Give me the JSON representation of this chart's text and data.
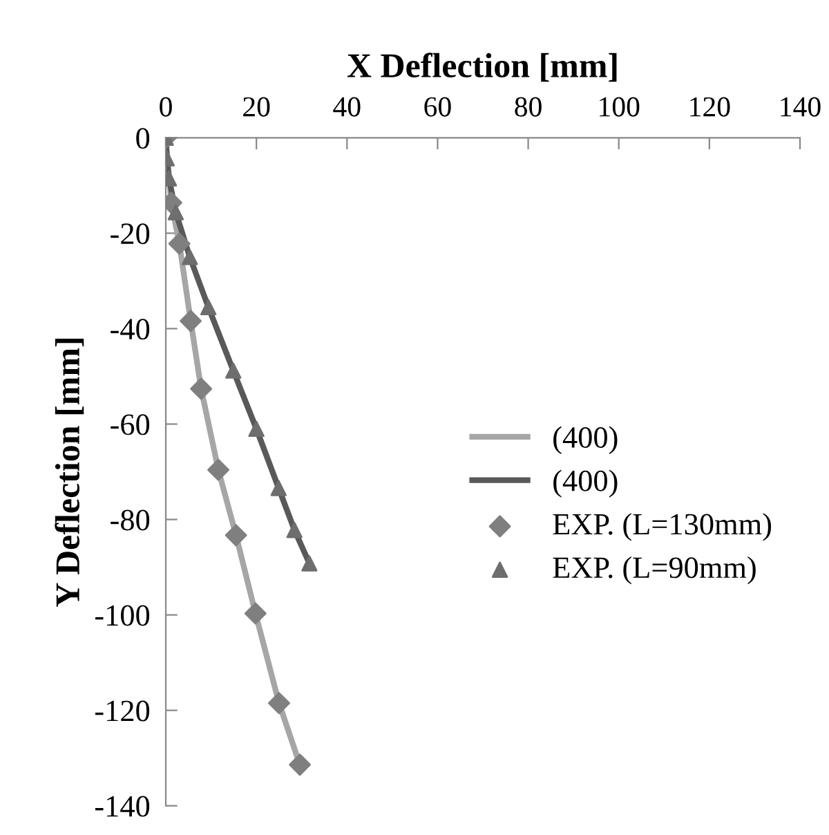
{
  "chart_data": {
    "type": "line",
    "xlabel": "X Deflection [mm]",
    "ylabel": "Y Deflection [mm]",
    "xlim": [
      0,
      140
    ],
    "xticks": [
      0,
      20,
      40,
      60,
      80,
      100,
      120,
      140
    ],
    "ylim": [
      -140,
      0
    ],
    "yticks": [
      -140,
      -120,
      -100,
      -80,
      -60,
      -40,
      -20,
      0
    ],
    "grid": false,
    "legend": "right",
    "series": [
      {
        "name": "(400)",
        "color": "#a6a6a6",
        "marker": "none",
        "x": [
          0,
          1.2,
          3,
          5.5,
          7.8,
          11.6,
          15.5,
          19.8,
          25,
          29.6
        ],
        "values": [
          0,
          -13.6,
          -22.2,
          -38.4,
          -52.6,
          -69.6,
          -83.3,
          -99.7,
          -118.5,
          -131.4
        ]
      },
      {
        "name": "(400)",
        "color": "#595959",
        "marker": "none",
        "x": [
          0,
          0.2,
          0.7,
          2.2,
          5.3,
          9.4,
          14.9,
          20,
          24.9,
          28.4,
          31.7
        ],
        "values": [
          0,
          -4.3,
          -8.5,
          -15.6,
          -25,
          -35.5,
          -48.8,
          -61,
          -73.4,
          -82.2,
          -89.2
        ]
      },
      {
        "name": "EXP. (L=130mm)",
        "type": "scatter",
        "color": "#7f7f7f",
        "marker": "diamond",
        "x": [
          0,
          1.2,
          3,
          5.5,
          7.8,
          11.6,
          15.5,
          19.8,
          25,
          29.6
        ],
        "values": [
          0,
          -13.6,
          -22.2,
          -38.4,
          -52.6,
          -69.6,
          -83.3,
          -99.7,
          -118.5,
          -131.4
        ]
      },
      {
        "name": "EXP. (L=90mm)",
        "type": "scatter",
        "color": "#6e6e6e",
        "marker": "triangle",
        "x": [
          0,
          0.2,
          0.7,
          2.2,
          5.3,
          9.4,
          14.9,
          20,
          24.9,
          28.4,
          31.7
        ],
        "values": [
          0,
          -4.3,
          -8.5,
          -15.6,
          -25,
          -35.5,
          -48.8,
          -61,
          -73.4,
          -82.2,
          -89.2
        ]
      }
    ]
  }
}
